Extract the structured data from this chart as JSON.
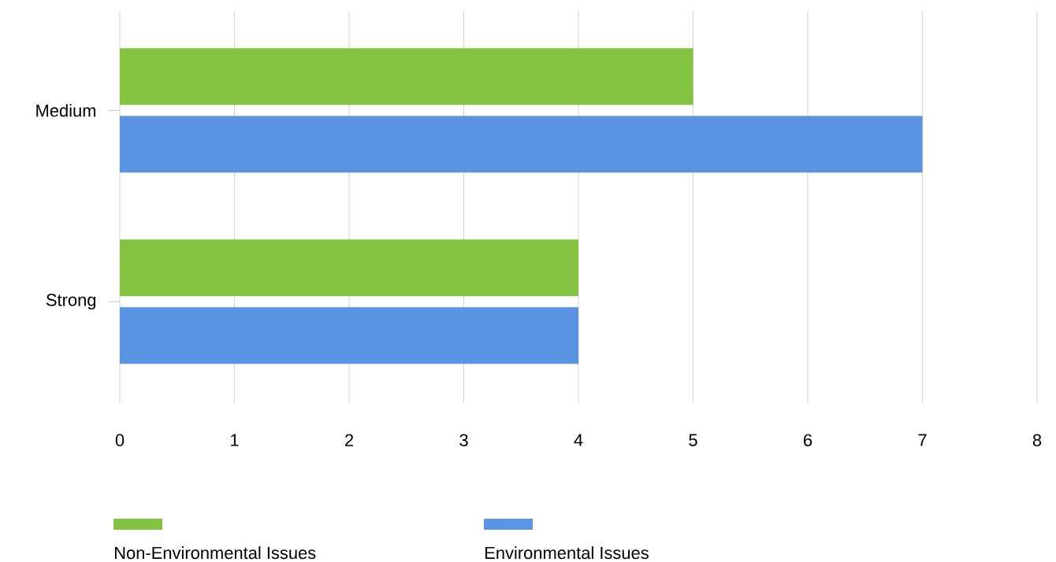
{
  "chart_data": {
    "type": "bar",
    "orientation": "horizontal",
    "categories": [
      "Medium",
      "Strong"
    ],
    "series": [
      {
        "name": "Non-Environmental Issues",
        "color": "#84c341",
        "values": [
          5,
          4
        ]
      },
      {
        "name": "Environmental Issues",
        "color": "#5b94e3",
        "values": [
          7,
          4
        ]
      }
    ],
    "xlim": [
      0,
      8
    ],
    "xticks": [
      0,
      1,
      2,
      3,
      4,
      5,
      6,
      7,
      8
    ],
    "grid": "x",
    "legend": "bottom"
  }
}
